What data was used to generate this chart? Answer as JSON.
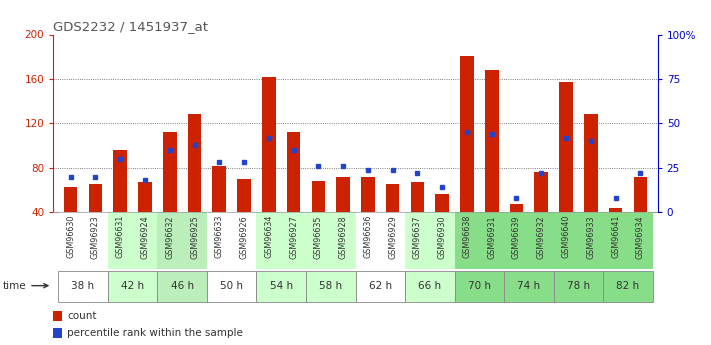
{
  "title": "GDS2232 / 1451937_at",
  "samples": [
    "GSM96630",
    "GSM96923",
    "GSM96631",
    "GSM96924",
    "GSM96632",
    "GSM96925",
    "GSM96633",
    "GSM96926",
    "GSM96634",
    "GSM96927",
    "GSM96635",
    "GSM96928",
    "GSM96636",
    "GSM96929",
    "GSM96637",
    "GSM96930",
    "GSM96638",
    "GSM96931",
    "GSM96639",
    "GSM96932",
    "GSM96640",
    "GSM96933",
    "GSM96641",
    "GSM96934"
  ],
  "time_groups": [
    {
      "label": "38 h",
      "indices": [
        0,
        1
      ],
      "color": "#ffffff"
    },
    {
      "label": "42 h",
      "indices": [
        2,
        3
      ],
      "color": "#ccffcc"
    },
    {
      "label": "46 h",
      "indices": [
        4,
        5
      ],
      "color": "#bbeebb"
    },
    {
      "label": "50 h",
      "indices": [
        6,
        7
      ],
      "color": "#ffffff"
    },
    {
      "label": "54 h",
      "indices": [
        8,
        9
      ],
      "color": "#ccffcc"
    },
    {
      "label": "58 h",
      "indices": [
        10,
        11
      ],
      "color": "#ccffcc"
    },
    {
      "label": "62 h",
      "indices": [
        12,
        13
      ],
      "color": "#ffffff"
    },
    {
      "label": "66 h",
      "indices": [
        14,
        15
      ],
      "color": "#ccffcc"
    },
    {
      "label": "70 h",
      "indices": [
        16,
        17
      ],
      "color": "#88dd88"
    },
    {
      "label": "74 h",
      "indices": [
        18,
        19
      ],
      "color": "#88dd88"
    },
    {
      "label": "78 h",
      "indices": [
        20,
        21
      ],
      "color": "#88dd88"
    },
    {
      "label": "82 h",
      "indices": [
        22,
        23
      ],
      "color": "#88dd88"
    }
  ],
  "counts": [
    63,
    65,
    96,
    67,
    112,
    128,
    82,
    70,
    162,
    112,
    68,
    72,
    72,
    65,
    67,
    56,
    181,
    168,
    47,
    76,
    157,
    128,
    44,
    72
  ],
  "percentile_ranks": [
    20,
    20,
    30,
    18,
    35,
    38,
    28,
    28,
    42,
    35,
    26,
    26,
    24,
    24,
    22,
    14,
    45,
    44,
    8,
    22,
    42,
    40,
    8,
    22
  ],
  "ylim_left": [
    40,
    200
  ],
  "ylim_right": [
    0,
    100
  ],
  "yticks_left": [
    40,
    80,
    120,
    160,
    200
  ],
  "yticks_right": [
    0,
    25,
    50,
    75,
    100
  ],
  "ytick_labels_right": [
    "0",
    "25",
    "50",
    "75",
    "100%"
  ],
  "bar_color": "#cc2200",
  "marker_color": "#2244cc",
  "grid_color": "#444444",
  "bg_color": "#ffffff",
  "title_color": "#555555",
  "axis_color_left": "#cc2200",
  "axis_color_right": "#0000cc"
}
